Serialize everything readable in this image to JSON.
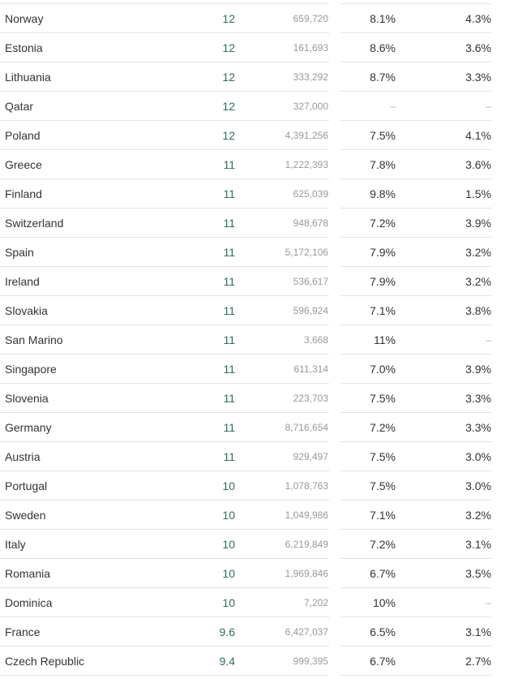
{
  "rows": [
    {
      "country": "Norway",
      "rate": "12",
      "population": "659,720",
      "pct_a": "8.1%",
      "pct_b": "4.3%"
    },
    {
      "country": "Estonia",
      "rate": "12",
      "population": "161,693",
      "pct_a": "8.6%",
      "pct_b": "3.6%"
    },
    {
      "country": "Lithuania",
      "rate": "12",
      "population": "333,292",
      "pct_a": "8.7%",
      "pct_b": "3.3%"
    },
    {
      "country": "Qatar",
      "rate": "12",
      "population": "327,000",
      "pct_a": "–",
      "pct_b": "–"
    },
    {
      "country": "Poland",
      "rate": "12",
      "population": "4,391,256",
      "pct_a": "7.5%",
      "pct_b": "4.1%"
    },
    {
      "country": "Greece",
      "rate": "11",
      "population": "1,222,393",
      "pct_a": "7.8%",
      "pct_b": "3.6%"
    },
    {
      "country": "Finland",
      "rate": "11",
      "population": "625,039",
      "pct_a": "9.8%",
      "pct_b": "1.5%"
    },
    {
      "country": "Switzerland",
      "rate": "11",
      "population": "948,678",
      "pct_a": "7.2%",
      "pct_b": "3.9%"
    },
    {
      "country": "Spain",
      "rate": "11",
      "population": "5,172,106",
      "pct_a": "7.9%",
      "pct_b": "3.2%"
    },
    {
      "country": "Ireland",
      "rate": "11",
      "population": "536,617",
      "pct_a": "7.9%",
      "pct_b": "3.2%"
    },
    {
      "country": "Slovakia",
      "rate": "11",
      "population": "596,924",
      "pct_a": "7.1%",
      "pct_b": "3.8%"
    },
    {
      "country": "San Marino",
      "rate": "11",
      "population": "3,668",
      "pct_a": "11%",
      "pct_b": "–"
    },
    {
      "country": "Singapore",
      "rate": "11",
      "population": "611,314",
      "pct_a": "7.0%",
      "pct_b": "3.9%"
    },
    {
      "country": "Slovenia",
      "rate": "11",
      "population": "223,703",
      "pct_a": "7.5%",
      "pct_b": "3.3%"
    },
    {
      "country": "Germany",
      "rate": "11",
      "population": "8,716,654",
      "pct_a": "7.2%",
      "pct_b": "3.3%"
    },
    {
      "country": "Austria",
      "rate": "11",
      "population": "929,497",
      "pct_a": "7.5%",
      "pct_b": "3.0%"
    },
    {
      "country": "Portugal",
      "rate": "10",
      "population": "1,078,763",
      "pct_a": "7.5%",
      "pct_b": "3.0%"
    },
    {
      "country": "Sweden",
      "rate": "10",
      "population": "1,049,986",
      "pct_a": "7.1%",
      "pct_b": "3.2%"
    },
    {
      "country": "Italy",
      "rate": "10",
      "population": "6,219,849",
      "pct_a": "7.2%",
      "pct_b": "3.1%"
    },
    {
      "country": "Romania",
      "rate": "10",
      "population": "1,969,846",
      "pct_a": "6.7%",
      "pct_b": "3.5%"
    },
    {
      "country": "Dominica",
      "rate": "10",
      "population": "7,202",
      "pct_a": "10%",
      "pct_b": "–"
    },
    {
      "country": "France",
      "rate": "9.6",
      "population": "6,427,037",
      "pct_a": "6.5%",
      "pct_b": "3.1%"
    },
    {
      "country": "Czech Republic",
      "rate": "9.4",
      "population": "999,395",
      "pct_a": "6.7%",
      "pct_b": "2.7%"
    }
  ],
  "colors": {
    "rate": "#2c6e5b",
    "population": "#999999",
    "text": "#333333",
    "divider": "#e2e2e2"
  }
}
